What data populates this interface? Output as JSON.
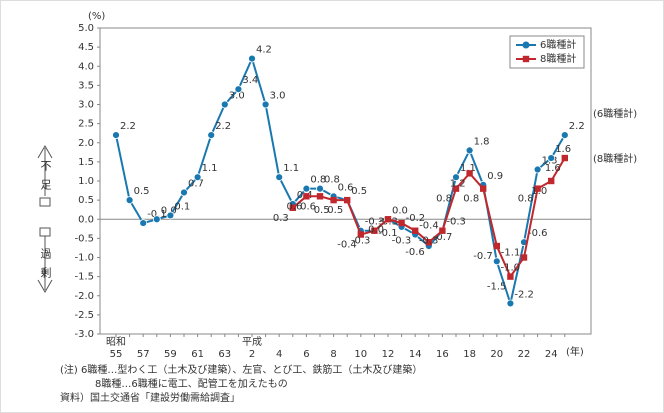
{
  "chart_data": {
    "type": "line",
    "y_unit": "(%)",
    "x_unit": "(年)",
    "categories": [
      "55",
      null,
      "57",
      null,
      "59",
      null,
      "61",
      null,
      "63",
      null,
      "2",
      null,
      "4",
      null,
      "6",
      null,
      "8",
      null,
      "10",
      null,
      "12",
      null,
      "14",
      null,
      "16",
      null,
      "18",
      null,
      "20",
      null,
      "22",
      null,
      "24",
      null
    ],
    "x_annotations": [
      {
        "text": "昭和",
        "category": "55"
      },
      {
        "text": "平成",
        "category": "2"
      }
    ],
    "series": [
      {
        "name": "6職種計",
        "color": "#1a78b0",
        "marker": "circle",
        "end_label": "(6職種計)",
        "values": [
          2.2,
          0.5,
          -0.1,
          0,
          0.1,
          0.7,
          1.1,
          2.2,
          3.0,
          3.4,
          4.2,
          3.0,
          1.1,
          0.4,
          0.8,
          0.8,
          0.6,
          0.5,
          -0.3,
          -0.3,
          0,
          -0.2,
          -0.4,
          -0.7,
          -0.3,
          1.1,
          1.8,
          0.9,
          -1.1,
          -2.2,
          -0.6,
          1.3,
          1.6,
          2.2
        ],
        "value_labels": [
          "2.2",
          "0.5",
          "-0.1",
          "0.0",
          "0.1",
          "0.7",
          "1.1",
          "2.2",
          "3.0",
          "3.4",
          "4.2",
          "3.0",
          "1.1",
          "0.4",
          "0.8",
          "0.8",
          "0.6",
          "0.5",
          "-0.3",
          "-0.3",
          "0.0",
          "-0.2",
          "-0.4",
          "-0.7",
          "-0.3",
          "1.1",
          "1.8",
          "0.9",
          "-1.1",
          "-2.2",
          "-0.6",
          "1.3",
          "1.6",
          "2.2"
        ]
      },
      {
        "name": "8職種計",
        "color": "#c0282d",
        "marker": "square",
        "end_label": "(8職種計)",
        "values": [
          null,
          null,
          null,
          null,
          null,
          null,
          null,
          null,
          null,
          null,
          null,
          null,
          null,
          0.3,
          0.6,
          0.6,
          0.5,
          0.5,
          -0.4,
          -0.3,
          0,
          -0.1,
          -0.3,
          -0.6,
          -0.3,
          0.8,
          1.2,
          0.8,
          -0.7,
          -1.5,
          -1.0,
          0.8,
          1.0,
          1.6
        ],
        "value_labels": [
          null,
          null,
          null,
          null,
          null,
          null,
          null,
          null,
          null,
          null,
          null,
          null,
          null,
          "0.3",
          "0.6",
          "0.6",
          "0.5",
          "0.5",
          "-0.4",
          "-0.3",
          "0.0",
          "-0.1",
          "-0.3",
          "-0.6",
          "-0.3",
          "0.8",
          "1.2",
          "0.8",
          "-0.7",
          "-1.5",
          "-1.0",
          "0.8",
          "1.0",
          "1.6"
        ]
      }
    ],
    "ylim": [
      -3,
      5
    ],
    "yticks": [
      {
        "value": -3,
        "label": "-3.0"
      },
      -2.5,
      {
        "value": -2,
        "label": "-2.0"
      },
      -1.5,
      {
        "value": -1,
        "label": "-1.0"
      },
      -0.5,
      {
        "value": 0,
        "label": "0.0"
      },
      0.5,
      {
        "value": 1,
        "label": "1.0"
      },
      1.5,
      {
        "value": 2,
        "label": "2.0"
      },
      2.5,
      {
        "value": 3,
        "label": "3.0"
      },
      3.5,
      {
        "value": 4,
        "label": "4.0"
      },
      4.5,
      {
        "value": 5,
        "label": "5.0"
      }
    ],
    "legend": "top-right",
    "side_labels": {
      "shortage": "不足",
      "surplus": "過剰"
    },
    "notes": [
      "(注)  6職種…型わく工（土木及び建築）、左官、とび工、鉄筋工（土木及び建築）",
      "8職種…6職種に電工、配管工を加えたもの",
      "資料）国土交通省「建設労働需給調査」"
    ]
  }
}
